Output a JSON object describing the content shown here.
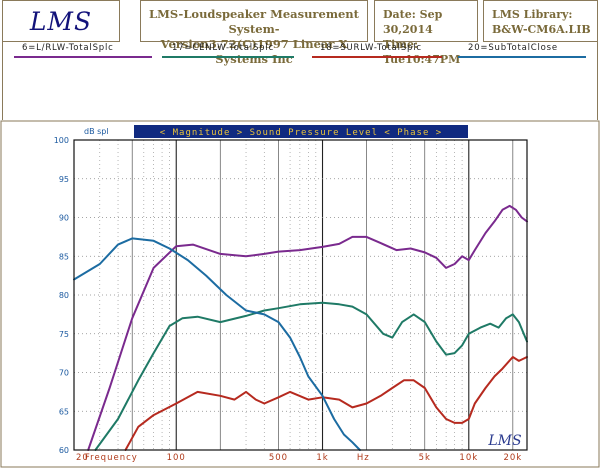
{
  "header": {
    "logo": "LMS",
    "system_line1": "LMS-Loudspeaker Measurement System-",
    "system_line2": "Version3.72(C)1997 Linear X Systems Inc",
    "date": "Date: Sep 30,2014",
    "time": "Time: Tue10:47PM",
    "library_line1": "LMS Library:",
    "library_line2": "B&W-CM6A.LIB"
  },
  "chart_data": {
    "type": "line",
    "banner": "< Magnitude >  Sound Pressure Level  < Phase >",
    "ylabel": "dB spl",
    "yticks": [
      100,
      95,
      90,
      85,
      80,
      75,
      70,
      65,
      60
    ],
    "xticklabels": [
      {
        "f": 20,
        "label": "20"
      },
      {
        "f": 36,
        "label": "Frequency"
      },
      {
        "f": 100,
        "label": "100"
      },
      {
        "f": 500,
        "label": "500"
      },
      {
        "f": 1000,
        "label": "1k"
      },
      {
        "f": 1900,
        "label": "Hz"
      },
      {
        "f": 5000,
        "label": "5k"
      },
      {
        "f": 10000,
        "label": "10k"
      },
      {
        "f": 20000,
        "label": "20k"
      }
    ],
    "watermark": "LMS",
    "xscale": "log",
    "xlim": [
      20,
      25000
    ],
    "ylim": [
      60,
      100
    ],
    "series": [
      {
        "name": "6=L/RLW-TotalSplc",
        "color": "#7a2a8e",
        "points": [
          [
            25,
            60
          ],
          [
            35,
            68
          ],
          [
            50,
            77
          ],
          [
            70,
            83.5
          ],
          [
            100,
            86.3
          ],
          [
            130,
            86.5
          ],
          [
            200,
            85.3
          ],
          [
            300,
            85
          ],
          [
            400,
            85.3
          ],
          [
            500,
            85.6
          ],
          [
            700,
            85.8
          ],
          [
            1000,
            86.2
          ],
          [
            1300,
            86.6
          ],
          [
            1600,
            87.5
          ],
          [
            2000,
            87.5
          ],
          [
            2500,
            86.7
          ],
          [
            3200,
            85.8
          ],
          [
            4000,
            86
          ],
          [
            5000,
            85.5
          ],
          [
            6000,
            84.8
          ],
          [
            7000,
            83.5
          ],
          [
            8000,
            84
          ],
          [
            9000,
            85
          ],
          [
            10000,
            84.5
          ],
          [
            11000,
            85.8
          ],
          [
            13000,
            88
          ],
          [
            15000,
            89.5
          ],
          [
            17000,
            91
          ],
          [
            19000,
            91.5
          ],
          [
            21000,
            91
          ],
          [
            23000,
            90
          ],
          [
            25000,
            89.5
          ]
        ]
      },
      {
        "name": "17=CENLW-TotalSplc",
        "color": "#1f7a66",
        "points": [
          [
            28,
            60
          ],
          [
            40,
            64
          ],
          [
            55,
            69
          ],
          [
            70,
            72.5
          ],
          [
            90,
            76
          ],
          [
            110,
            77
          ],
          [
            140,
            77.2
          ],
          [
            200,
            76.5
          ],
          [
            300,
            77.3
          ],
          [
            400,
            78
          ],
          [
            500,
            78.3
          ],
          [
            700,
            78.8
          ],
          [
            1000,
            79
          ],
          [
            1300,
            78.8
          ],
          [
            1600,
            78.5
          ],
          [
            2000,
            77.5
          ],
          [
            2600,
            75
          ],
          [
            3000,
            74.5
          ],
          [
            3500,
            76.5
          ],
          [
            4200,
            77.5
          ],
          [
            5000,
            76.5
          ],
          [
            6000,
            74
          ],
          [
            7000,
            72.3
          ],
          [
            8000,
            72.5
          ],
          [
            9000,
            73.5
          ],
          [
            10000,
            75
          ],
          [
            12000,
            75.8
          ],
          [
            14000,
            76.3
          ],
          [
            16000,
            75.8
          ],
          [
            18000,
            77
          ],
          [
            20000,
            77.5
          ],
          [
            22000,
            76.5
          ],
          [
            25000,
            74
          ]
        ]
      },
      {
        "name": "18=SURLW-TotalSplc",
        "color": "#b62a1f",
        "points": [
          [
            45,
            60
          ],
          [
            55,
            63
          ],
          [
            70,
            64.5
          ],
          [
            100,
            66
          ],
          [
            140,
            67.5
          ],
          [
            200,
            67
          ],
          [
            250,
            66.5
          ],
          [
            300,
            67.5
          ],
          [
            350,
            66.5
          ],
          [
            400,
            66
          ],
          [
            500,
            66.8
          ],
          [
            600,
            67.5
          ],
          [
            800,
            66.5
          ],
          [
            1000,
            66.8
          ],
          [
            1300,
            66.5
          ],
          [
            1600,
            65.5
          ],
          [
            2000,
            66
          ],
          [
            2500,
            67
          ],
          [
            3000,
            68
          ],
          [
            3600,
            69
          ],
          [
            4200,
            69
          ],
          [
            5000,
            68
          ],
          [
            6000,
            65.5
          ],
          [
            7000,
            64
          ],
          [
            8000,
            63.5
          ],
          [
            9000,
            63.5
          ],
          [
            10000,
            64
          ],
          [
            11000,
            66
          ],
          [
            13000,
            68
          ],
          [
            15000,
            69.5
          ],
          [
            17000,
            70.5
          ],
          [
            20000,
            72
          ],
          [
            22000,
            71.5
          ],
          [
            25000,
            72
          ]
        ]
      },
      {
        "name": "20=SubTotalClose",
        "color": "#1c6ca2",
        "points": [
          [
            20,
            82
          ],
          [
            30,
            84
          ],
          [
            40,
            86.5
          ],
          [
            50,
            87.3
          ],
          [
            70,
            87
          ],
          [
            90,
            86
          ],
          [
            120,
            84.5
          ],
          [
            160,
            82.5
          ],
          [
            220,
            80
          ],
          [
            300,
            78
          ],
          [
            400,
            77.5
          ],
          [
            500,
            76.5
          ],
          [
            600,
            74.5
          ],
          [
            700,
            72
          ],
          [
            800,
            69.5
          ],
          [
            1000,
            67
          ],
          [
            1200,
            64
          ],
          [
            1400,
            62
          ],
          [
            1600,
            61
          ],
          [
            1800,
            60
          ]
        ]
      }
    ]
  }
}
